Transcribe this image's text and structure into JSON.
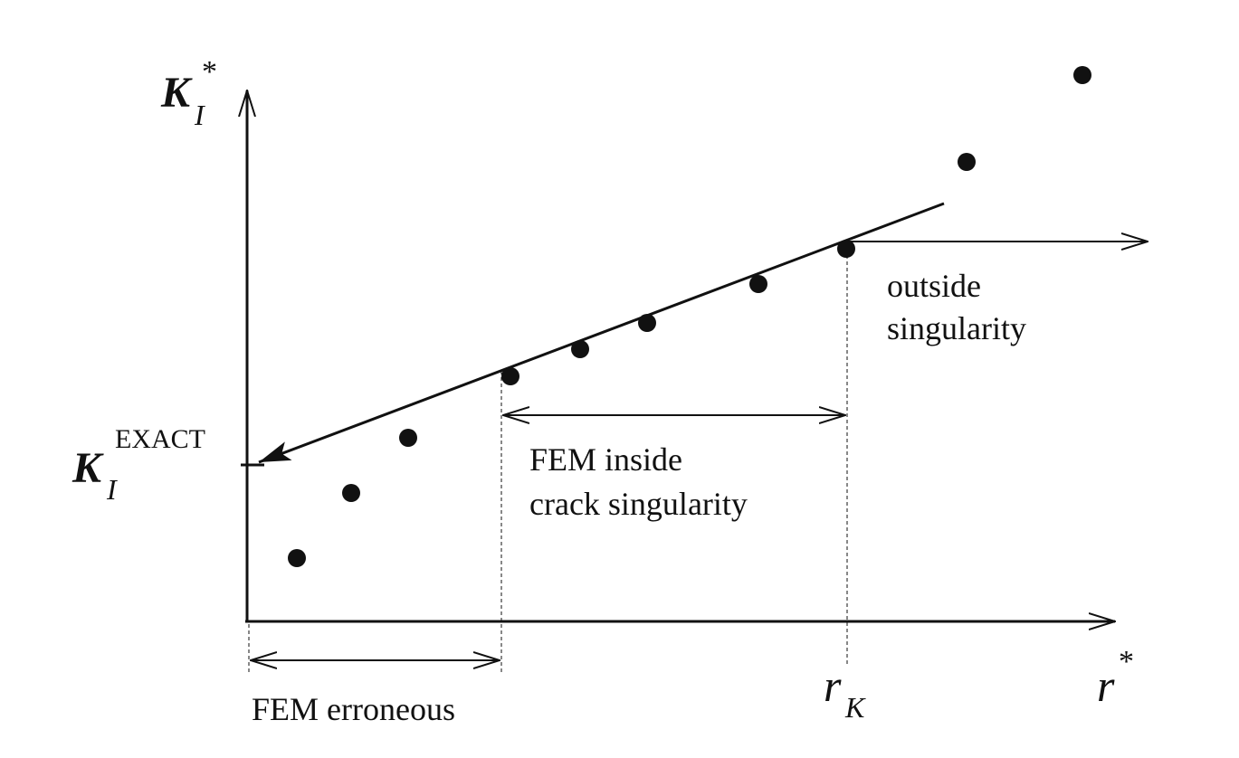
{
  "chart_data": {
    "type": "scatter",
    "title": "",
    "x_axis": {
      "label": "r",
      "label_sup": "*",
      "marker_label": "r",
      "marker_sub": "K"
    },
    "y_axis": {
      "label": "K",
      "label_sub": "I",
      "label_sup": "*"
    },
    "exact_value_label": {
      "main": "K",
      "sub": "I",
      "sup": "EXACT"
    },
    "points": [
      {
        "x": 1,
        "y": 1
      },
      {
        "x": 2,
        "y": 2
      },
      {
        "x": 3,
        "y": 3
      },
      {
        "x": 4,
        "y": 4
      },
      {
        "x": 5,
        "y": 5
      },
      {
        "x": 6,
        "y": 6
      },
      {
        "x": 7,
        "y": 7
      },
      {
        "x": 8,
        "y": 8
      },
      {
        "x": 9,
        "y": 9
      },
      {
        "x": 10,
        "y": 10
      }
    ],
    "regions": {
      "erroneous": "FEM erroneous",
      "inside_line1": "FEM inside",
      "inside_line2": "crack singularity",
      "outside_line1": "outside",
      "outside_line2": "singularity"
    },
    "colors": {
      "ink": "#111111",
      "background": "#ffffff"
    }
  }
}
